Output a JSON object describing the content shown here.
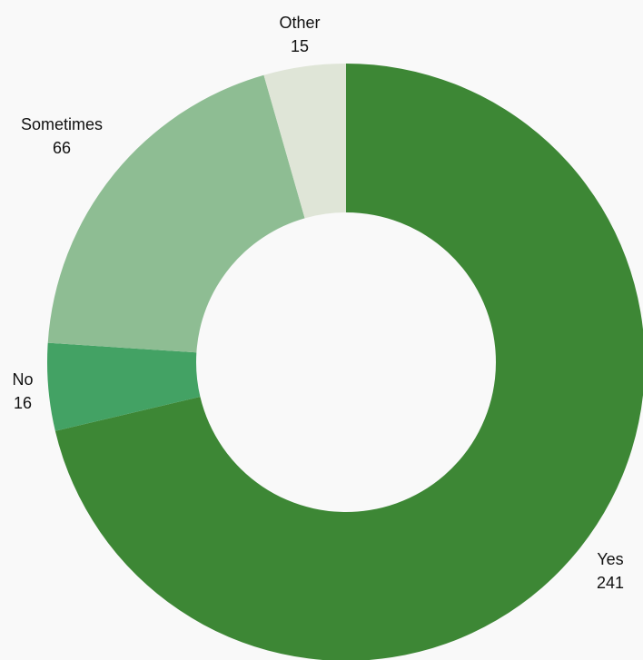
{
  "chart_data": {
    "type": "pie",
    "variant": "donut",
    "categories": [
      "Yes",
      "No",
      "Sometimes",
      "Other"
    ],
    "values": [
      241,
      16,
      66,
      15
    ],
    "colors": [
      "#3d8735",
      "#43a264",
      "#8ebd93",
      "#dfe5d7"
    ],
    "start": "12 o'clock",
    "direction": "clockwise",
    "legend": "none",
    "data_labels": "category and value outside each slice"
  }
}
